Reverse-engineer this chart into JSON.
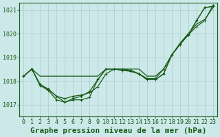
{
  "background_color": "#cce8e8",
  "grid_color": "#aacccc",
  "line_color": "#1a5c1a",
  "xlabel": "Graphe pression niveau de la mer (hPa)",
  "xlabel_fontsize": 8,
  "xlim": [
    -0.5,
    23.5
  ],
  "ylim": [
    1016.5,
    1021.3
  ],
  "yticks": [
    1017,
    1018,
    1019,
    1020,
    1021
  ],
  "xticks": [
    0,
    1,
    2,
    3,
    4,
    5,
    6,
    7,
    8,
    9,
    10,
    11,
    12,
    13,
    14,
    15,
    16,
    17,
    18,
    19,
    20,
    21,
    22,
    23
  ],
  "tick_fontsize": 6,
  "line1": [
    1018.2,
    1018.5,
    1017.8,
    1017.6,
    1017.2,
    1017.1,
    1017.2,
    1017.2,
    1017.3,
    1018.05,
    1018.5,
    1018.5,
    1018.45,
    1018.45,
    1018.3,
    1018.05,
    1018.05,
    1018.3,
    1019.1,
    1019.55,
    1019.95,
    1020.55,
    1021.1,
    1021.15
  ],
  "line2": [
    1018.2,
    1018.5,
    1017.85,
    1017.65,
    1017.35,
    1017.25,
    1017.35,
    1017.4,
    1017.5,
    1017.75,
    1018.3,
    1018.5,
    1018.45,
    1018.4,
    1018.3,
    1018.1,
    1018.1,
    1018.5,
    1019.1,
    1019.55,
    1019.95,
    1020.3,
    1020.55,
    1021.2
  ],
  "line3": [
    1018.2,
    1018.5,
    1018.2,
    1018.2,
    1018.2,
    1018.2,
    1018.2,
    1018.2,
    1018.2,
    1018.2,
    1018.5,
    1018.5,
    1018.5,
    1018.5,
    1018.5,
    1018.2,
    1018.2,
    1018.5,
    1019.1,
    1019.6,
    1020.0,
    1020.4,
    1020.6,
    1021.1
  ],
  "line4": [
    1018.2,
    1018.5,
    1017.85,
    1017.65,
    1017.35,
    1017.1,
    1017.25,
    1017.35,
    1017.55,
    1018.05,
    1018.5,
    1018.5,
    1018.5,
    1018.45,
    1018.3,
    1018.05,
    1018.05,
    1018.3,
    1019.1,
    1019.55,
    1019.95,
    1020.55,
    1021.1,
    1021.15
  ]
}
